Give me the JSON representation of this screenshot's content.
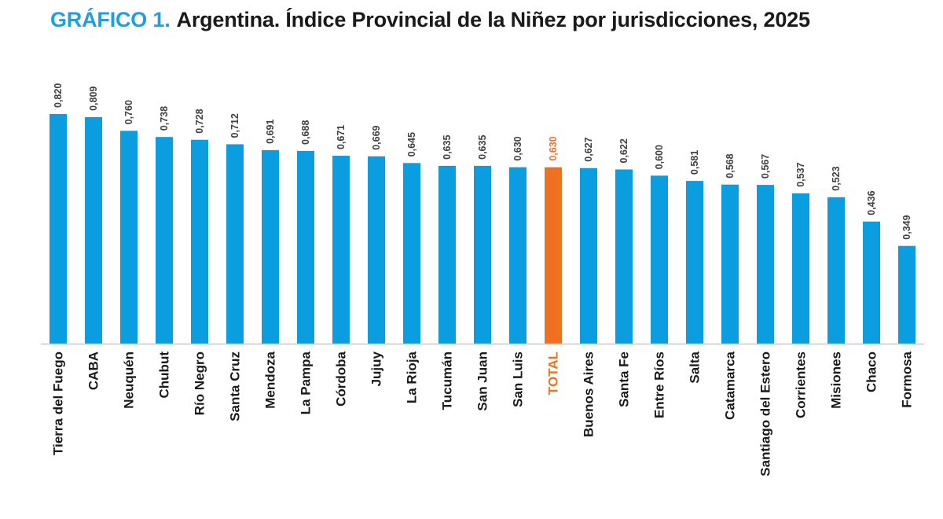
{
  "header": {
    "prefix": "GRÁFICO 1.",
    "title": "Argentina. Índice Provincial de la Niñez por jurisdicciones, 2025"
  },
  "colors": {
    "bar": "#0a9de0",
    "highlight": "#f07022",
    "prefix": "#1f9fdc",
    "title": "#1a1a1a",
    "label": "#1a1a1a",
    "value_label": "#404040",
    "axis": "#c8c8c8"
  },
  "chart_data": {
    "type": "bar",
    "title": "Argentina. Índice Provincial de la Niñez por jurisdicciones, 2025",
    "categories": [
      "Tierra del Fuego",
      "CABA",
      "Neuquén",
      "Chubut",
      "Río Negro",
      "Santa Cruz",
      "Mendoza",
      "La Pampa",
      "Córdoba",
      "Jujuy",
      "La Rioja",
      "Tucumán",
      "San Juan",
      "San Luis",
      "TOTAL",
      "Buenos Aires",
      "Santa Fe",
      "Entre Ríos",
      "Salta",
      "Catamarca",
      "Santiago del Estero",
      "Corrientes",
      "Misiones",
      "Chaco",
      "Formosa"
    ],
    "values": [
      0.82,
      0.809,
      0.76,
      0.738,
      0.728,
      0.712,
      0.691,
      0.688,
      0.671,
      0.669,
      0.645,
      0.635,
      0.635,
      0.63,
      0.63,
      0.627,
      0.622,
      0.6,
      0.581,
      0.568,
      0.567,
      0.537,
      0.523,
      0.436,
      0.349
    ],
    "value_labels": [
      "0,820",
      "0,809",
      "0,760",
      "0,738",
      "0,728",
      "0,712",
      "0,691",
      "0,688",
      "0,671",
      "0,669",
      "0,645",
      "0,635",
      "0,635",
      "0,630",
      "0,630",
      "0,627",
      "0,622",
      "0,600",
      "0,581",
      "0,568",
      "0,567",
      "0,537",
      "0,523",
      "0,436",
      "0,349"
    ],
    "highlight": "TOTAL",
    "xlabel": "",
    "ylabel": "",
    "ylim": [
      0,
      0.9
    ],
    "grid": false,
    "legend": "none"
  }
}
